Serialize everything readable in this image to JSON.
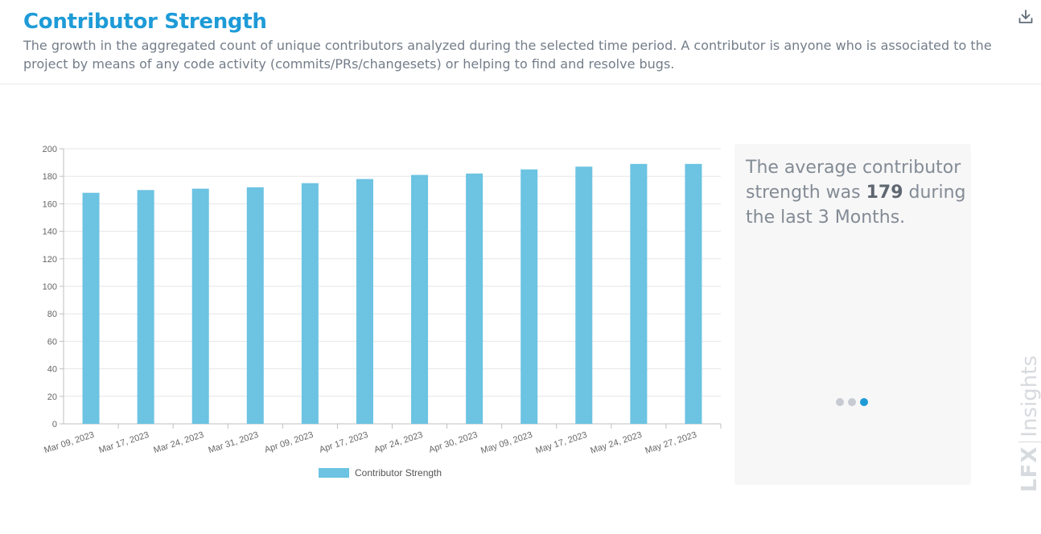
{
  "header": {
    "title": "Contributor Strength",
    "description": "The growth in the aggregated count of unique contributors analyzed during the selected time period. A contributor is anyone who is associated to the project by means of any code activity (commits/PRs/changesets) or helping to find and resolve bugs.",
    "download_icon": "download-icon"
  },
  "summary": {
    "prefix": "The average contributor strength was ",
    "value": "179",
    "suffix": " during the last 3 Months."
  },
  "carousel": {
    "pages": 3,
    "active_index": 2
  },
  "brand": {
    "logo": "LFX",
    "name": "Insights"
  },
  "colors": {
    "bar": "#6cc3e2",
    "accent": "#1e9bd7",
    "grid": "#e6e6e6"
  },
  "chart_data": {
    "type": "bar",
    "categories": [
      "Mar 09, 2023",
      "Mar 17, 2023",
      "Mar 24, 2023",
      "Mar 31, 2023",
      "Apr 09, 2023",
      "Apr 17, 2023",
      "Apr 24, 2023",
      "Apr 30, 2023",
      "May 09, 2023",
      "May 17, 2023",
      "May 24, 2023",
      "May 27, 2023"
    ],
    "series": [
      {
        "name": "Contributor Strength",
        "values": [
          168,
          170,
          171,
          172,
          175,
          178,
          181,
          182,
          185,
          187,
          189,
          189
        ]
      }
    ],
    "yticks": [
      0,
      20,
      40,
      60,
      80,
      100,
      120,
      140,
      160,
      180,
      200
    ],
    "ylim": [
      0,
      200
    ],
    "grid": true,
    "legend": "bottom"
  }
}
